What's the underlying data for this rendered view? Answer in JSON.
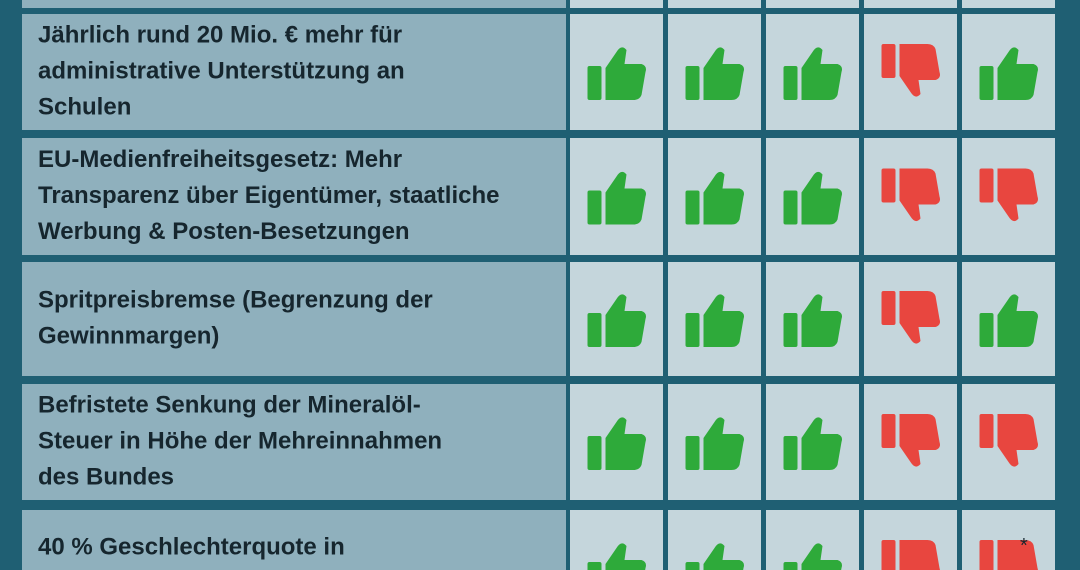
{
  "table": {
    "rows": [
      {
        "lines": [
          "Jährlich rund 20 Mio. € mehr für",
          "administrative Unterstützung an",
          "Schulen"
        ],
        "votes": [
          "up",
          "up",
          "up",
          "down",
          "up"
        ]
      },
      {
        "lines": [
          "EU-Medienfreiheitsgesetz: Mehr",
          "Transparenz über Eigentümer, staatliche",
          "Werbung & Posten-Besetzungen"
        ],
        "votes": [
          "up",
          "up",
          "up",
          "down",
          "down"
        ]
      },
      {
        "lines": [
          "Spritpreisbremse (Begrenzung der",
          "Gewinnmargen)"
        ],
        "votes": [
          "up",
          "up",
          "up",
          "down",
          "up"
        ]
      },
      {
        "lines": [
          "Befristete Senkung der Mineralöl-",
          "Steuer in Höhe der Mehreinnahmen",
          "des Bundes"
        ],
        "votes": [
          "up",
          "up",
          "up",
          "down",
          "down"
        ]
      },
      {
        "lines": [
          "40 % Geschlechterquote in"
        ],
        "votes": [
          "up",
          "up",
          "up",
          "down",
          "down"
        ],
        "note": "*"
      }
    ]
  }
}
